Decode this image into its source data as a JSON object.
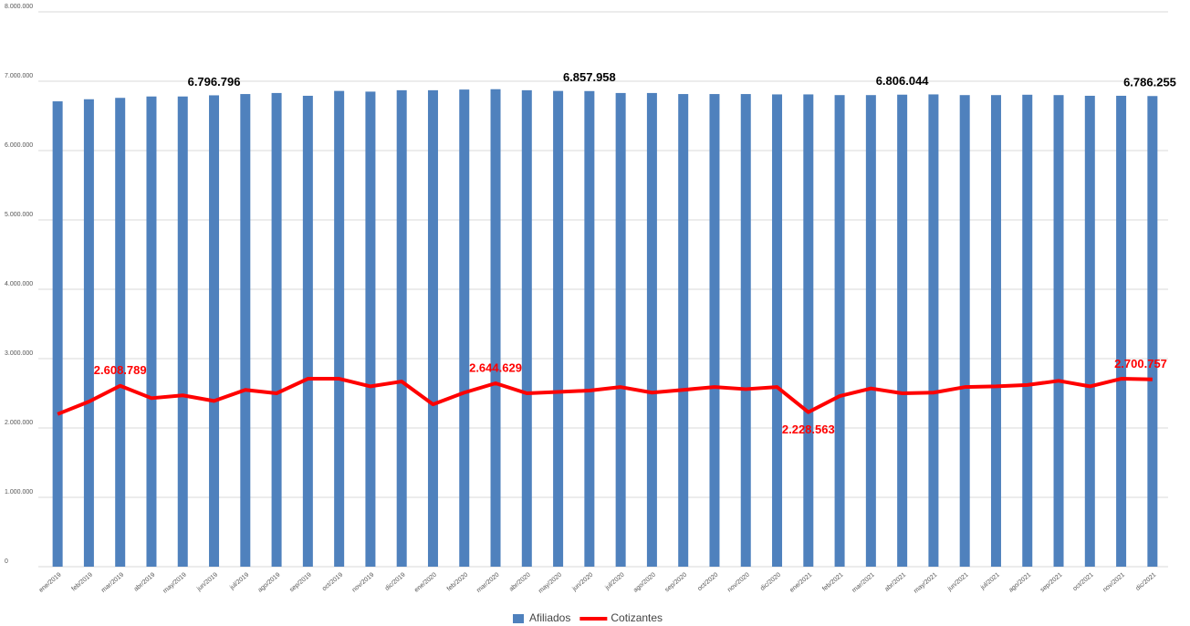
{
  "chart_data": {
    "type": "bar_line",
    "categories": [
      "ene/2019",
      "feb/2019",
      "mar/2019",
      "abr/2019",
      "may/2019",
      "jun/2019",
      "jul/2019",
      "ago/2019",
      "sep/2019",
      "oct/2019",
      "nov/2019",
      "dic/2019",
      "ene/2020",
      "feb/2020",
      "mar/2020",
      "abr/2020",
      "may/2020",
      "jun/2020",
      "jul/2020",
      "ago/2020",
      "sep/2020",
      "oct/2020",
      "nov/2020",
      "dic/2020",
      "ene/2021",
      "feb/2021",
      "mar/2021",
      "abr/2021",
      "may/2021",
      "jun/2021",
      "jul/2021",
      "ago/2021",
      "sep/2021",
      "oct/2021",
      "nov/2021",
      "dic/2021"
    ],
    "series": [
      {
        "name": "Afiliados",
        "type": "bar",
        "color": "#4f81bd",
        "values": [
          6710000,
          6740000,
          6760000,
          6780000,
          6780000,
          6796796,
          6815000,
          6830000,
          6790000,
          6860000,
          6850000,
          6870000,
          6870000,
          6880000,
          6885000,
          6870000,
          6860000,
          6857958,
          6830000,
          6830000,
          6815000,
          6815000,
          6815000,
          6810000,
          6810000,
          6800000,
          6800000,
          6806044,
          6810000,
          6800000,
          6800000,
          6805000,
          6800000,
          6790000,
          6790000,
          6786255
        ],
        "value_labels": [
          null,
          null,
          null,
          null,
          null,
          "6.796.796",
          null,
          null,
          null,
          null,
          null,
          null,
          null,
          null,
          null,
          null,
          null,
          "6.857.958",
          null,
          null,
          null,
          null,
          null,
          null,
          null,
          null,
          null,
          "6.806.044",
          null,
          null,
          null,
          null,
          null,
          null,
          null,
          "6.786.255"
        ]
      },
      {
        "name": "Cotizantes",
        "type": "line",
        "color": "#ff0000",
        "values": [
          2200000,
          2380000,
          2608789,
          2430000,
          2470000,
          2390000,
          2550000,
          2500000,
          2710000,
          2710000,
          2600000,
          2670000,
          2340000,
          2510000,
          2644629,
          2500000,
          2520000,
          2540000,
          2590000,
          2510000,
          2550000,
          2590000,
          2560000,
          2590000,
          2228563,
          2460000,
          2570000,
          2500000,
          2510000,
          2590000,
          2600000,
          2620000,
          2680000,
          2600000,
          2710000,
          2700757
        ],
        "value_labels": [
          null,
          null,
          "2.608.789",
          null,
          null,
          null,
          null,
          null,
          null,
          null,
          null,
          null,
          null,
          null,
          "2.644.629",
          null,
          null,
          null,
          null,
          null,
          null,
          null,
          null,
          null,
          "2.228.563",
          null,
          null,
          null,
          null,
          null,
          null,
          null,
          null,
          null,
          null,
          "2.700.757"
        ]
      }
    ],
    "ylim": [
      0,
      8000000
    ],
    "yticks": [
      0,
      {
        "value": 1000000,
        "label": "1.000.000"
      },
      {
        "value": 2000000,
        "label": "2.000.000"
      },
      {
        "value": 3000000,
        "label": "3.000.000"
      },
      {
        "value": 4000000,
        "label": "4.000.000"
      },
      {
        "value": 5000000,
        "label": "5.000.000"
      },
      {
        "value": 6000000,
        "label": "6.000.000"
      },
      {
        "value": 7000000,
        "label": "7.000.000"
      },
      {
        "value": 8000000,
        "label": "8.000.000"
      }
    ],
    "grid": true,
    "legend": "bottom"
  }
}
